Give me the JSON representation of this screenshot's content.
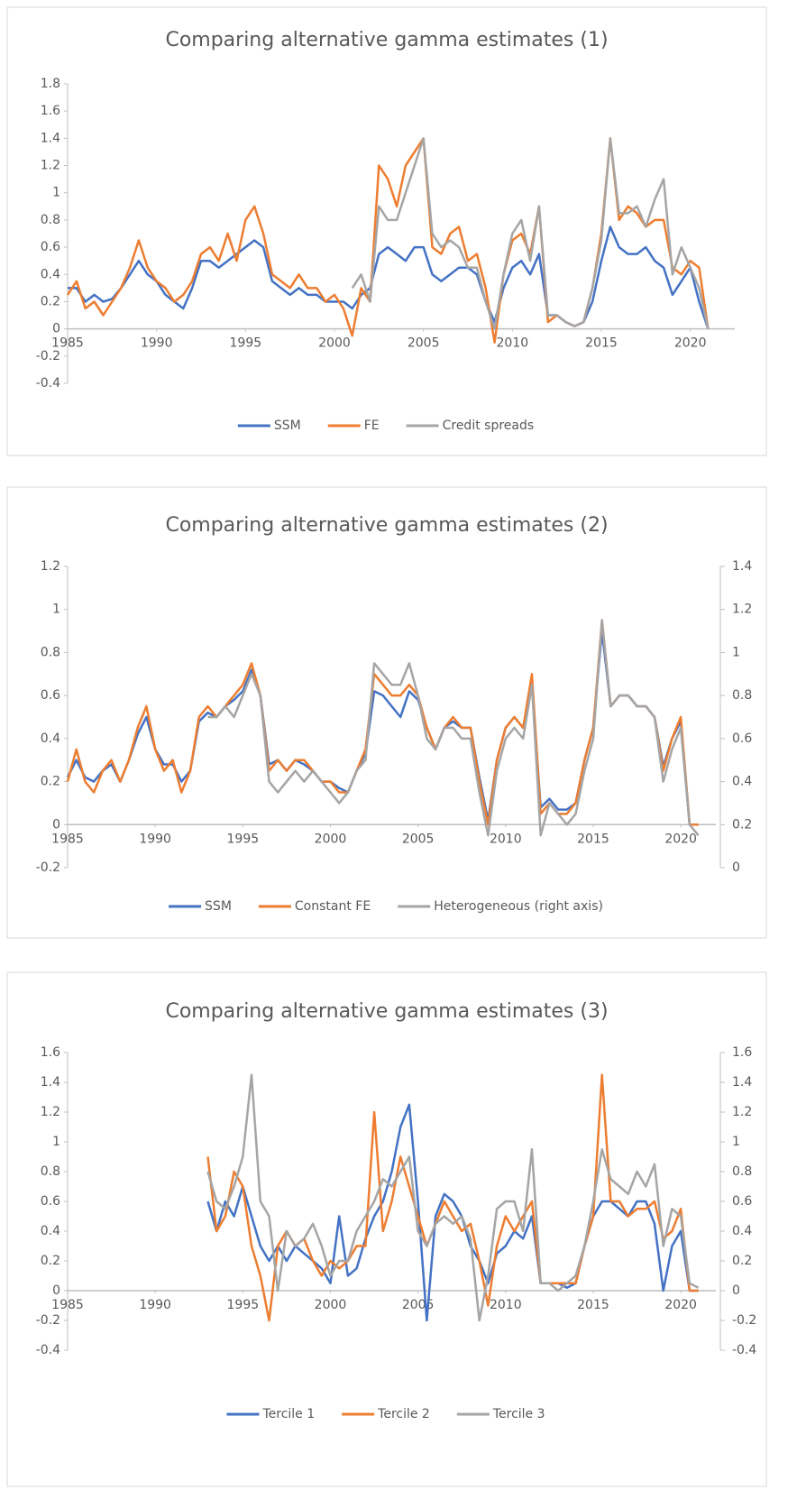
{
  "chart_data": [
    {
      "type": "line",
      "title": "Comparing alternative gamma estimates (1)",
      "x": [
        1985,
        1985.5,
        1986,
        1986.5,
        1987,
        1987.5,
        1988,
        1988.5,
        1989,
        1989.5,
        1990,
        1990.5,
        1991,
        1991.5,
        1992,
        1992.5,
        1993,
        1993.5,
        1994,
        1994.5,
        1995,
        1995.5,
        1996,
        1996.5,
        1997,
        1997.5,
        1998,
        1998.5,
        1999,
        1999.5,
        2000,
        2000.5,
        2001,
        2001.5,
        2002,
        2002.5,
        2003,
        2003.5,
        2004,
        2004.5,
        2005,
        2005.5,
        2006,
        2006.5,
        2007,
        2007.5,
        2008,
        2008.5,
        2009,
        2009.5,
        2010,
        2010.5,
        2011,
        2011.5,
        2012,
        2012.5,
        2013,
        2013.5,
        2014,
        2014.5,
        2015,
        2015.5,
        2016,
        2016.5,
        2017,
        2017.5,
        2018,
        2018.5,
        2019,
        2019.5,
        2020,
        2020.5,
        2021
      ],
      "xlim": [
        1985,
        2022.5
      ],
      "xticks": [
        1985,
        1990,
        1995,
        2000,
        2005,
        2010,
        2015,
        2020
      ],
      "ylim": [
        -0.4,
        1.8
      ],
      "yticks": [
        -0.4,
        -0.2,
        0,
        0.2,
        0.4,
        0.6,
        0.8,
        1,
        1.2,
        1.4,
        1.6,
        1.8
      ],
      "series": [
        {
          "name": "SSM",
          "color": "#4472c4",
          "values": [
            0.3,
            0.3,
            0.2,
            0.25,
            0.2,
            0.22,
            0.3,
            0.4,
            0.5,
            0.4,
            0.35,
            0.25,
            0.2,
            0.15,
            0.3,
            0.5,
            0.5,
            0.45,
            0.5,
            0.55,
            0.6,
            0.65,
            0.6,
            0.35,
            0.3,
            0.25,
            0.3,
            0.25,
            0.25,
            0.2,
            0.2,
            0.2,
            0.15,
            0.25,
            0.3,
            0.55,
            0.6,
            0.55,
            0.5,
            0.6,
            0.6,
            0.4,
            0.35,
            0.4,
            0.45,
            0.45,
            0.4,
            0.2,
            0.05,
            0.3,
            0.45,
            0.5,
            0.4,
            0.55,
            0.1,
            0.1,
            0.05,
            0.02,
            0.05,
            0.2,
            0.5,
            0.75,
            0.6,
            0.55,
            0.55,
            0.6,
            0.5,
            0.45,
            0.25,
            0.35,
            0.45,
            0.2,
            0
          ]
        },
        {
          "name": "FE",
          "color": "#ed7d31",
          "values": [
            0.25,
            0.35,
            0.15,
            0.2,
            0.1,
            0.2,
            0.3,
            0.45,
            0.65,
            0.45,
            0.35,
            0.3,
            0.2,
            0.25,
            0.35,
            0.55,
            0.6,
            0.5,
            0.7,
            0.5,
            0.8,
            0.9,
            0.7,
            0.4,
            0.35,
            0.3,
            0.4,
            0.3,
            0.3,
            0.2,
            0.25,
            0.15,
            -0.05,
            0.3,
            0.2,
            1.2,
            1.1,
            0.9,
            1.2,
            1.3,
            1.4,
            0.6,
            0.55,
            0.7,
            0.75,
            0.5,
            0.55,
            0.3,
            -0.1,
            0.4,
            0.65,
            0.7,
            0.55,
            0.9,
            0.05,
            0.1,
            0.05,
            0.02,
            0.05,
            0.3,
            0.7,
            1.4,
            0.8,
            0.9,
            0.85,
            0.75,
            0.8,
            0.8,
            0.45,
            0.4,
            0.5,
            0.45,
            0
          ]
        },
        {
          "name": "Credit spreads",
          "color": "#a5a5a5",
          "values": [
            null,
            null,
            null,
            null,
            null,
            null,
            null,
            null,
            null,
            null,
            null,
            null,
            null,
            null,
            null,
            null,
            null,
            null,
            null,
            null,
            null,
            null,
            null,
            null,
            null,
            null,
            null,
            null,
            null,
            null,
            null,
            null,
            0.3,
            0.4,
            0.2,
            0.9,
            0.8,
            0.8,
            1.0,
            1.2,
            1.4,
            0.7,
            0.6,
            0.65,
            0.6,
            0.45,
            0.45,
            0.2,
            0,
            0.4,
            0.7,
            0.8,
            0.5,
            0.9,
            0.1,
            0.1,
            0.05,
            0.02,
            0.05,
            0.3,
            0.65,
            1.4,
            0.85,
            0.85,
            0.9,
            0.75,
            0.95,
            1.1,
            0.4,
            0.6,
            0.45,
            0.3,
            0
          ]
        }
      ]
    },
    {
      "type": "line",
      "title": "Comparing alternative gamma estimates (2)",
      "x": [
        1985,
        1985.5,
        1986,
        1986.5,
        1987,
        1987.5,
        1988,
        1988.5,
        1989,
        1989.5,
        1990,
        1990.5,
        1991,
        1991.5,
        1992,
        1992.5,
        1993,
        1993.5,
        1994,
        1994.5,
        1995,
        1995.5,
        1996,
        1996.5,
        1997,
        1997.5,
        1998,
        1998.5,
        1999,
        1999.5,
        2000,
        2000.5,
        2001,
        2001.5,
        2002,
        2002.5,
        2003,
        2003.5,
        2004,
        2004.5,
        2005,
        2005.5,
        2006,
        2006.5,
        2007,
        2007.5,
        2008,
        2008.5,
        2009,
        2009.5,
        2010,
        2010.5,
        2011,
        2011.5,
        2012,
        2012.5,
        2013,
        2013.5,
        2014,
        2014.5,
        2015,
        2015.5,
        2016,
        2016.5,
        2017,
        2017.5,
        2018,
        2018.5,
        2019,
        2019.5,
        2020,
        2020.5,
        2021
      ],
      "xlim": [
        1985,
        2022
      ],
      "xticks": [
        1985,
        1990,
        1995,
        2000,
        2005,
        2010,
        2015,
        2020
      ],
      "ylim": [
        -0.2,
        1.2
      ],
      "yticks": [
        -0.2,
        0,
        0.2,
        0.4,
        0.6,
        0.8,
        1,
        1.2
      ],
      "y2lim": [
        0,
        1.4
      ],
      "y2ticks": [
        0,
        0.2,
        0.4,
        0.6,
        0.8,
        1,
        1.2,
        1.4
      ],
      "series": [
        {
          "name": "SSM",
          "color": "#4472c4",
          "values": [
            0.22,
            0.3,
            0.22,
            0.2,
            0.25,
            0.28,
            0.2,
            0.3,
            0.42,
            0.5,
            0.35,
            0.28,
            0.28,
            0.2,
            0.25,
            0.48,
            0.52,
            0.5,
            0.55,
            0.58,
            0.62,
            0.72,
            0.6,
            0.28,
            0.3,
            0.25,
            0.3,
            0.28,
            0.25,
            0.2,
            0.2,
            0.17,
            0.15,
            0.25,
            0.33,
            0.62,
            0.6,
            0.55,
            0.5,
            0.62,
            0.58,
            0.45,
            0.35,
            0.45,
            0.48,
            0.45,
            0.45,
            0.22,
            0.02,
            0.3,
            0.45,
            0.5,
            0.45,
            0.65,
            0.08,
            0.12,
            0.07,
            0.07,
            0.1,
            0.3,
            0.45,
            0.9,
            0.55,
            0.6,
            0.6,
            0.55,
            0.55,
            0.5,
            0.27,
            0.4,
            0.48,
            0,
            0
          ]
        },
        {
          "name": "Constant FE",
          "color": "#ed7d31",
          "values": [
            0.2,
            0.35,
            0.2,
            0.15,
            0.25,
            0.3,
            0.2,
            0.3,
            0.45,
            0.55,
            0.35,
            0.25,
            0.3,
            0.15,
            0.25,
            0.5,
            0.55,
            0.5,
            0.55,
            0.6,
            0.65,
            0.75,
            0.6,
            0.25,
            0.3,
            0.25,
            0.3,
            0.3,
            0.25,
            0.2,
            0.2,
            0.15,
            0.15,
            0.25,
            0.35,
            0.7,
            0.65,
            0.6,
            0.6,
            0.65,
            0.6,
            0.45,
            0.35,
            0.45,
            0.5,
            0.45,
            0.45,
            0.2,
            0,
            0.3,
            0.45,
            0.5,
            0.45,
            0.7,
            0.05,
            0.1,
            0.05,
            0.05,
            0.1,
            0.3,
            0.45,
            0.95,
            0.55,
            0.6,
            0.6,
            0.55,
            0.55,
            0.5,
            0.25,
            0.4,
            0.5,
            0,
            0
          ]
        },
        {
          "name": "Heterogeneous (right axis)",
          "color": "#a5a5a5",
          "axis": "y2",
          "values": [
            null,
            null,
            null,
            null,
            null,
            null,
            null,
            null,
            null,
            null,
            null,
            null,
            null,
            null,
            null,
            null,
            0.7,
            0.7,
            0.75,
            0.7,
            0.8,
            0.9,
            0.8,
            0.4,
            0.35,
            0.4,
            0.45,
            0.4,
            0.45,
            0.4,
            0.35,
            0.3,
            0.35,
            0.45,
            0.5,
            0.95,
            0.9,
            0.85,
            0.85,
            0.95,
            0.8,
            0.6,
            0.55,
            0.65,
            0.65,
            0.6,
            0.6,
            0.35,
            0.15,
            0.45,
            0.6,
            0.65,
            0.6,
            0.85,
            0.15,
            0.3,
            0.25,
            0.2,
            0.25,
            0.45,
            0.6,
            1.15,
            0.75,
            0.8,
            0.8,
            0.75,
            0.75,
            0.7,
            0.4,
            0.55,
            0.65,
            0.2,
            0.15
          ]
        }
      ]
    },
    {
      "type": "line",
      "title": "Comparing alternative gamma estimates (3)",
      "x": [
        1993,
        1993.5,
        1994,
        1994.5,
        1995,
        1995.5,
        1996,
        1996.5,
        1997,
        1997.5,
        1998,
        1998.5,
        1999,
        1999.5,
        2000,
        2000.5,
        2001,
        2001.5,
        2002,
        2002.5,
        2003,
        2003.5,
        2004,
        2004.5,
        2005,
        2005.5,
        2006,
        2006.5,
        2007,
        2007.5,
        2008,
        2008.5,
        2009,
        2009.5,
        2010,
        2010.5,
        2011,
        2011.5,
        2012,
        2012.5,
        2013,
        2013.5,
        2014,
        2014.5,
        2015,
        2015.5,
        2016,
        2016.5,
        2017,
        2017.5,
        2018,
        2018.5,
        2019,
        2019.5,
        2020,
        2020.5,
        2021
      ],
      "xlim": [
        1985,
        2022
      ],
      "xticks": [
        1985,
        1990,
        1995,
        2000,
        2005,
        2010,
        2015,
        2020
      ],
      "ylim": [
        -0.4,
        1.6
      ],
      "yticks": [
        -0.4,
        -0.2,
        0,
        0.2,
        0.4,
        0.6,
        0.8,
        1,
        1.2,
        1.4,
        1.6
      ],
      "y2lim": [
        -0.4,
        1.6
      ],
      "y2ticks": [
        -0.4,
        -0.2,
        0,
        0.2,
        0.4,
        0.6,
        0.8,
        1,
        1.2,
        1.4,
        1.6
      ],
      "series": [
        {
          "name": "Tercile 1",
          "color": "#4472c4",
          "values": [
            0.6,
            0.4,
            0.6,
            0.5,
            0.7,
            0.5,
            0.3,
            0.2,
            0.3,
            0.2,
            0.3,
            0.25,
            0.2,
            0.15,
            0.05,
            0.5,
            0.1,
            0.15,
            0.35,
            0.5,
            0.6,
            0.8,
            1.1,
            1.25,
            0.6,
            -0.2,
            0.5,
            0.65,
            0.6,
            0.5,
            0.3,
            0.2,
            0.05,
            0.25,
            0.3,
            0.4,
            0.35,
            0.5,
            0.05,
            0.05,
            0.05,
            0.02,
            0.05,
            0.3,
            0.5,
            0.6,
            0.6,
            0.55,
            0.5,
            0.6,
            0.6,
            0.45,
            0,
            0.3,
            0.4,
            0,
            0
          ]
        },
        {
          "name": "Tercile 2",
          "color": "#ed7d31",
          "values": [
            0.9,
            0.4,
            0.5,
            0.8,
            0.7,
            0.3,
            0.1,
            -0.2,
            0.3,
            0.4,
            0.3,
            0.35,
            0.2,
            0.1,
            0.2,
            0.15,
            0.2,
            0.3,
            0.3,
            1.2,
            0.4,
            0.6,
            0.9,
            0.7,
            0.5,
            0.3,
            0.45,
            0.6,
            0.5,
            0.4,
            0.45,
            0.2,
            -0.1,
            0.3,
            0.5,
            0.4,
            0.5,
            0.6,
            0.05,
            0.05,
            0.05,
            0.05,
            0.05,
            0.3,
            0.5,
            1.45,
            0.6,
            0.6,
            0.5,
            0.55,
            0.55,
            0.6,
            0.35,
            0.4,
            0.55,
            0,
            0
          ]
        },
        {
          "name": "Tercile 3",
          "color": "#a5a5a5",
          "values": [
            0.8,
            0.6,
            0.55,
            0.7,
            0.9,
            1.45,
            0.6,
            0.5,
            0,
            0.4,
            0.3,
            0.35,
            0.45,
            0.3,
            0.1,
            0.2,
            0.2,
            0.4,
            0.5,
            0.6,
            0.75,
            0.7,
            0.8,
            0.9,
            0.4,
            0.3,
            0.45,
            0.5,
            0.45,
            0.5,
            0.35,
            -0.2,
            0.1,
            0.55,
            0.6,
            0.6,
            0.4,
            0.95,
            0.05,
            0.05,
            0,
            0.05,
            0.1,
            0.3,
            0.6,
            0.95,
            0.75,
            0.7,
            0.65,
            0.8,
            0.7,
            0.85,
            0.3,
            0.55,
            0.5,
            0.05,
            0.02
          ]
        }
      ]
    }
  ]
}
